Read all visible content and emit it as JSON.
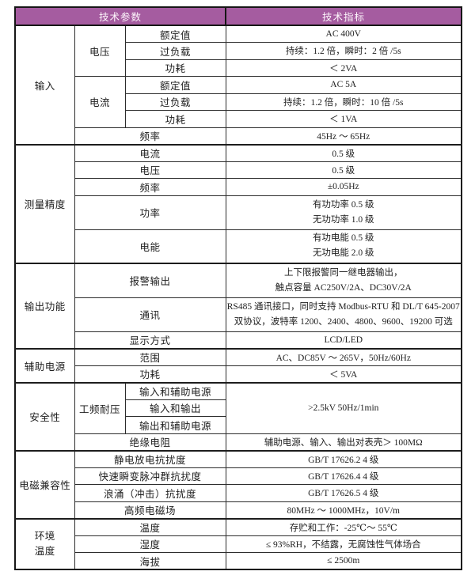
{
  "header": {
    "params": "技术参数",
    "specs": "技术指标"
  },
  "colors": {
    "header_bg": "#A55CA0",
    "header_text": "#FDF6FB",
    "border": "#2C2C2C",
    "border_dark": "#161616",
    "text": "#1E1E1E"
  },
  "sections": [
    {
      "label_lines": [
        "输入"
      ],
      "rows": [
        {
          "sub": {
            "label": "电压",
            "rowspan": 3
          },
          "label": "额定值",
          "value": {
            "lines": [
              "AC 400V"
            ]
          }
        },
        {
          "label": "过负载",
          "value": {
            "lines": [
              "持续：1.2 倍，瞬时：2 倍 /5s"
            ]
          }
        },
        {
          "label": "功耗",
          "value": {
            "lines": [
              "＜ 2VA"
            ]
          }
        },
        {
          "sub": {
            "label": "电流",
            "rowspan": 3
          },
          "label": "额定值",
          "value": {
            "lines": [
              "AC 5A"
            ]
          }
        },
        {
          "label": "过负载",
          "value": {
            "lines": [
              "持续：1.2 倍，瞬时：10 倍 /5s"
            ]
          }
        },
        {
          "label": "功耗",
          "value": {
            "lines": [
              "＜ 1VA"
            ]
          }
        },
        {
          "label": "频率",
          "label_colspan": 2,
          "value": {
            "lines": [
              "45Hz ～ 65Hz"
            ]
          }
        }
      ]
    },
    {
      "label_lines": [
        "测量精度"
      ],
      "rows": [
        {
          "label": "电流",
          "label_colspan": 2,
          "value": {
            "lines": [
              "0.5 级"
            ]
          }
        },
        {
          "label": "电压",
          "label_colspan": 2,
          "value": {
            "lines": [
              "0.5 级"
            ]
          }
        },
        {
          "label": "频率",
          "label_colspan": 2,
          "value": {
            "lines": [
              "±0.05Hz"
            ]
          }
        },
        {
          "label": "功率",
          "label_colspan": 2,
          "tall": true,
          "value": {
            "lines": [
              "有功功率 0.5 级",
              "无功功率 1.0 级"
            ]
          }
        },
        {
          "label": "电能",
          "label_colspan": 2,
          "tall": true,
          "value": {
            "lines": [
              "有功电能 0.5 级",
              "无功电能 2.0 级"
            ]
          }
        }
      ]
    },
    {
      "label_lines": [
        "输出功能"
      ],
      "rows": [
        {
          "label": "报警输出",
          "label_colspan": 2,
          "tall": true,
          "value": {
            "lines": [
              "上下限报警同一继电器输出，",
              "触点容量 AC250V/2A、DC30V/2A"
            ]
          }
        },
        {
          "label": "通讯",
          "label_colspan": 2,
          "tall": true,
          "value": {
            "lines": [
              "RS485 通讯接口，同时支持 Modbus-RTU 和 DL/T 645-2007",
              "双协议，波特率 1200、2400、4800、9600、19200 可选"
            ]
          }
        },
        {
          "label": "显示方式",
          "label_colspan": 2,
          "value": {
            "lines": [
              "LCD/LED"
            ]
          }
        }
      ]
    },
    {
      "label_lines": [
        "辅助电源"
      ],
      "rows": [
        {
          "label": "范围",
          "label_colspan": 2,
          "value": {
            "lines": [
              "AC、DC85V ～ 265V，50Hz/60Hz"
            ]
          }
        },
        {
          "label": "功耗",
          "label_colspan": 2,
          "value": {
            "lines": [
              "＜ 5VA"
            ]
          }
        }
      ]
    },
    {
      "label_lines": [
        "安全性"
      ],
      "rows": [
        {
          "sub": {
            "label": "工频耐压",
            "rowspan": 3
          },
          "label": "输入和辅助电源",
          "value": {
            "lines": [
              ">2.5kV 50Hz/1min"
            ],
            "rowspan": 3
          }
        },
        {
          "label": "输入和输出",
          "value": null
        },
        {
          "label": "输出和辅助电源",
          "value": null
        },
        {
          "label": "绝缘电阻",
          "label_colspan": 2,
          "value": {
            "lines": [
              "辅助电源、输入、输出对表壳＞ 100MΩ"
            ]
          }
        }
      ]
    },
    {
      "label_lines": [
        "电磁兼容性"
      ],
      "rows": [
        {
          "label": "静电放电抗扰度",
          "label_colspan": 2,
          "value": {
            "lines": [
              "GB/T 17626.2 4 级"
            ]
          }
        },
        {
          "label": "快速瞬变脉冲群抗扰度",
          "label_colspan": 2,
          "value": {
            "lines": [
              "GB/T 17626.4 4 级"
            ]
          }
        },
        {
          "label": "浪涌（冲击）抗扰度",
          "label_colspan": 2,
          "value": {
            "lines": [
              "GB/T 17626.5 4 级"
            ]
          }
        },
        {
          "label": "高频电磁场",
          "label_colspan": 2,
          "value": {
            "lines": [
              "80MHz ～ 1000MHz，10V/m"
            ]
          }
        }
      ]
    },
    {
      "label_lines": [
        "环境",
        "温度"
      ],
      "rows": [
        {
          "label": "温度",
          "label_colspan": 2,
          "value": {
            "lines": [
              "存贮和工作：-25℃～ 55℃"
            ]
          }
        },
        {
          "label": "湿度",
          "label_colspan": 2,
          "value": {
            "lines": [
              "≤ 93%RH，不结露，无腐蚀性气体场合"
            ]
          }
        },
        {
          "label": "海拔",
          "label_colspan": 2,
          "value": {
            "lines": [
              "≤ 2500m"
            ]
          }
        }
      ]
    }
  ]
}
